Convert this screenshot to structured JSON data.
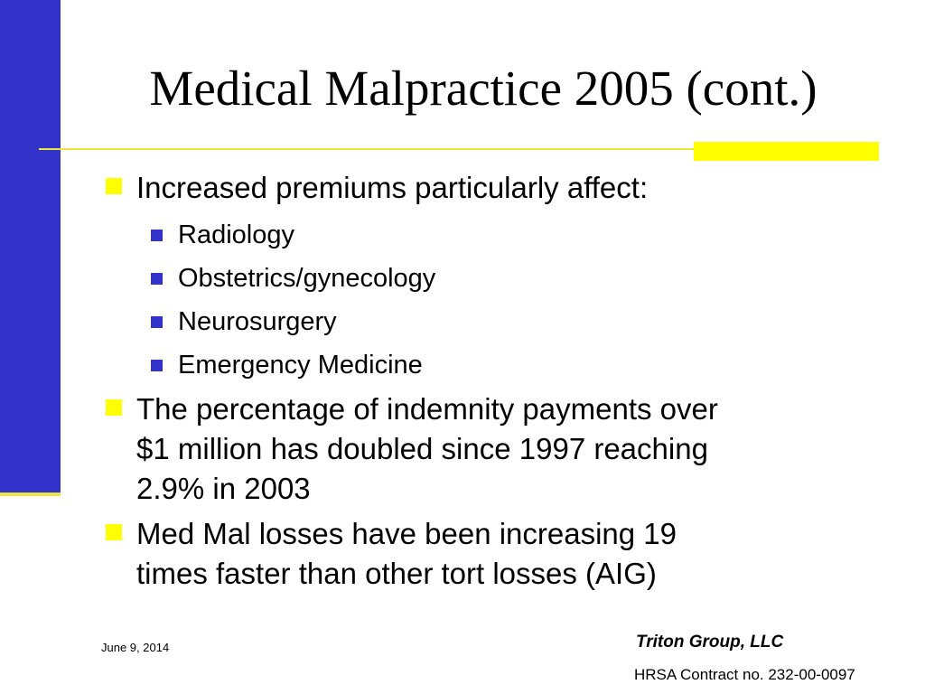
{
  "slide": {
    "title": "Medical Malpractice 2005 (cont.)",
    "bullets": [
      {
        "text": "Increased premiums particularly affect:",
        "sub": [
          "Radiology",
          "Obstetrics/gynecology",
          "Neurosurgery",
          "Emergency Medicine"
        ]
      },
      {
        "lines": [
          "The percentage of indemnity payments over",
          "$1 million has doubled since 1997 reaching",
          "2.9% in 2003"
        ]
      },
      {
        "lines": [
          "Med Mal losses have been increasing 19",
          "times faster than other tort losses (AIG)"
        ]
      }
    ]
  },
  "footer": {
    "date": "June 9, 2014",
    "company": "Triton Group, LLC",
    "contract": "HRSA Contract no. 232-00-0097"
  },
  "colors": {
    "side_bar": "#3333cc",
    "accent": "#ffff00",
    "rule": "#e8e83c",
    "sub_bullet": "#3333cc"
  }
}
